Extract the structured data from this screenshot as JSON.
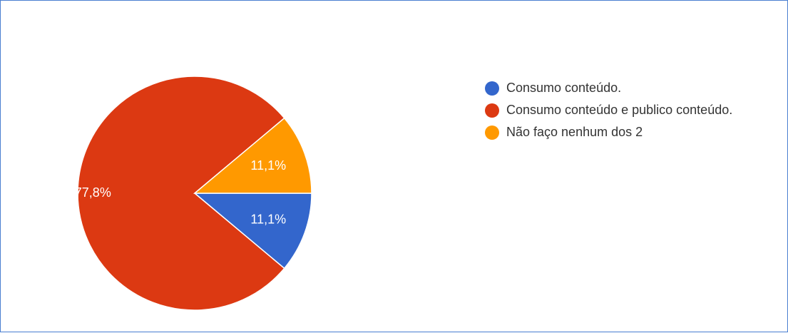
{
  "chart_data": {
    "type": "pie",
    "slices": [
      {
        "label": "Consumo conteúdo.",
        "value": 11.1,
        "display": "11,1%",
        "color": "#3366cc"
      },
      {
        "label": "Consumo conteúdo e publico conteúdo.",
        "value": 77.8,
        "display": "77,8%",
        "color": "#dc3912"
      },
      {
        "label": "Não faço nenhum dos 2",
        "value": 11.1,
        "display": "11,1%",
        "color": "#ff9900"
      }
    ],
    "legend_position": "right"
  }
}
